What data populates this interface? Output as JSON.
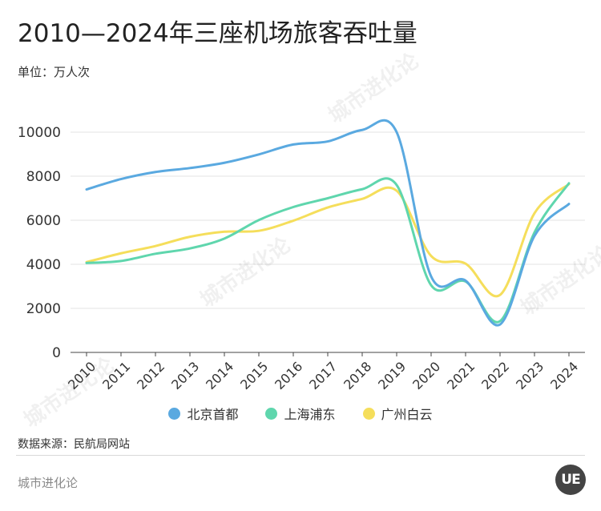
{
  "title": "2010—2024年三座机场旅客吞吐量",
  "unit_label": "单位：万人次",
  "source": "数据来源：民航局网站",
  "brand": "城市进化论",
  "logo_text": "UE",
  "watermark": "城市进化论",
  "chart_data": {
    "type": "line",
    "title": "2010—2024年三座机场旅客吞吐量",
    "ylabel": "单位：万人次",
    "xlabel": "",
    "categories": [
      "2010",
      "2011",
      "2012",
      "2013",
      "2014",
      "2015",
      "2016",
      "2017",
      "2018",
      "2019",
      "2020",
      "2021",
      "2022",
      "2023",
      "2024"
    ],
    "ylim": [
      0,
      10000
    ],
    "yticks": [
      0,
      2000,
      4000,
      6000,
      8000,
      10000
    ],
    "grid": true,
    "legend_position": "bottom",
    "series": [
      {
        "name": "北京首都",
        "color": "#5aa9e0",
        "values": [
          7400,
          7870,
          8190,
          8370,
          8610,
          8990,
          9440,
          9580,
          10100,
          10000,
          3450,
          3260,
          1270,
          5290,
          6740
        ]
      },
      {
        "name": "上海浦东",
        "color": "#5fd6ad",
        "values": [
          4060,
          4150,
          4480,
          4720,
          5170,
          6010,
          6600,
          7000,
          7410,
          7600,
          3050,
          3220,
          1420,
          5450,
          7680
        ]
      },
      {
        "name": "广州白云",
        "color": "#f5de5b",
        "values": [
          4100,
          4500,
          4830,
          5250,
          5480,
          5520,
          5980,
          6580,
          6970,
          7340,
          4380,
          4030,
          2610,
          6320,
          7640
        ]
      }
    ]
  }
}
